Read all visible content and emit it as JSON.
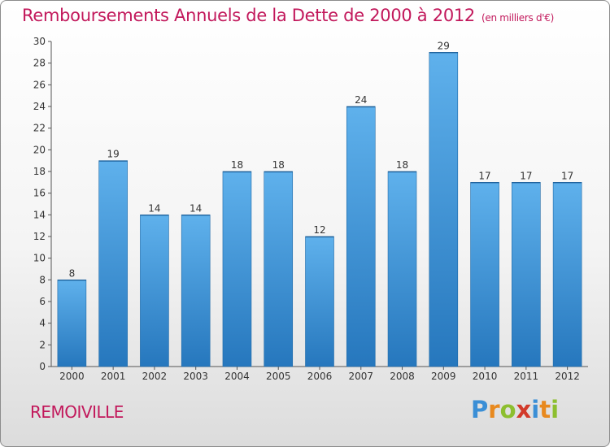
{
  "title": "Remboursements Annuels de la Dette de 2000 à 2012",
  "subtitle": "(en milliers d'€)",
  "commune": "REMOIVILLE",
  "logo": {
    "text": "Proxiti",
    "letters": [
      {
        "ch": "P",
        "color": "#3b8fd6"
      },
      {
        "ch": "r",
        "color": "#e8891e"
      },
      {
        "ch": "o",
        "color": "#8dbf2f"
      },
      {
        "ch": "x",
        "color": "#d23a2a"
      },
      {
        "ch": "i",
        "color": "#3b8fd6"
      },
      {
        "ch": "t",
        "color": "#e8891e"
      },
      {
        "ch": "i",
        "color": "#8dbf2f"
      }
    ]
  },
  "colors": {
    "bar_light": "#5daeea",
    "bar_dark": "#2a7fc4",
    "text": "#c2185b"
  },
  "chart_data": {
    "type": "bar",
    "categories": [
      "2000",
      "2001",
      "2002",
      "2003",
      "2004",
      "2005",
      "2006",
      "2007",
      "2008",
      "2009",
      "2010",
      "2011",
      "2012"
    ],
    "values": [
      8,
      19,
      14,
      14,
      18,
      18,
      12,
      24,
      18,
      29,
      17,
      17,
      17
    ],
    "ylim": [
      0,
      30
    ],
    "yticks": [
      0,
      2,
      4,
      6,
      8,
      10,
      12,
      14,
      16,
      18,
      20,
      22,
      24,
      26,
      28,
      30
    ],
    "grid": false
  }
}
